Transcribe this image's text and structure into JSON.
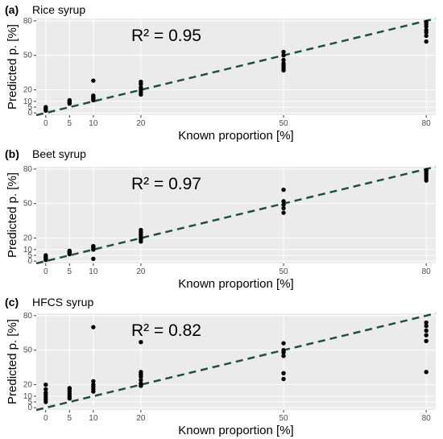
{
  "chart_data": [
    {
      "type": "scatter",
      "panel_label": "(a)",
      "title": "Rice syrup",
      "annotation": "R² = 0.95",
      "xlabel": "Known proportion [%]",
      "ylabel": "Predicted p. [%]",
      "x_ticks": [
        "0",
        "5",
        "10",
        "20",
        "50",
        "80"
      ],
      "y_ticks": [
        "0",
        "5",
        "10",
        "20",
        "50",
        "80"
      ],
      "xlim": [
        -2,
        82
      ],
      "ylim": [
        -2,
        82
      ],
      "grid": true,
      "fit_line": "y = x (dashed)",
      "points": [
        {
          "x": 0,
          "y": 2
        },
        {
          "x": 0,
          "y": 3
        },
        {
          "x": 0,
          "y": 4
        },
        {
          "x": 0,
          "y": 5
        },
        {
          "x": 5,
          "y": 8
        },
        {
          "x": 5,
          "y": 9
        },
        {
          "x": 5,
          "y": 10
        },
        {
          "x": 5,
          "y": 11
        },
        {
          "x": 10,
          "y": 11
        },
        {
          "x": 10,
          "y": 12
        },
        {
          "x": 10,
          "y": 13
        },
        {
          "x": 10,
          "y": 14
        },
        {
          "x": 10,
          "y": 15
        },
        {
          "x": 10,
          "y": 28
        },
        {
          "x": 20,
          "y": 16
        },
        {
          "x": 20,
          "y": 18
        },
        {
          "x": 20,
          "y": 20
        },
        {
          "x": 20,
          "y": 22
        },
        {
          "x": 20,
          "y": 25
        },
        {
          "x": 20,
          "y": 27
        },
        {
          "x": 50,
          "y": 37
        },
        {
          "x": 50,
          "y": 39
        },
        {
          "x": 50,
          "y": 41
        },
        {
          "x": 50,
          "y": 43
        },
        {
          "x": 50,
          "y": 46
        },
        {
          "x": 50,
          "y": 50
        },
        {
          "x": 50,
          "y": 53
        },
        {
          "x": 80,
          "y": 62
        },
        {
          "x": 80,
          "y": 67
        },
        {
          "x": 80,
          "y": 70
        },
        {
          "x": 80,
          "y": 72
        },
        {
          "x": 80,
          "y": 75
        },
        {
          "x": 80,
          "y": 77
        },
        {
          "x": 80,
          "y": 79
        }
      ]
    },
    {
      "type": "scatter",
      "panel_label": "(b)",
      "title": "Beet syrup",
      "annotation": "R² = 0.97",
      "xlabel": "Known proportion [%]",
      "ylabel": "Predicted p. [%]",
      "x_ticks": [
        "0",
        "5",
        "10",
        "20",
        "50",
        "80"
      ],
      "y_ticks": [
        "0",
        "5",
        "10",
        "20",
        "50",
        "80"
      ],
      "xlim": [
        -2,
        82
      ],
      "ylim": [
        -2,
        82
      ],
      "grid": true,
      "fit_line": "y = x (dashed)",
      "points": [
        {
          "x": 0,
          "y": 1
        },
        {
          "x": 0,
          "y": 2
        },
        {
          "x": 0,
          "y": 3
        },
        {
          "x": 0,
          "y": 4
        },
        {
          "x": 0,
          "y": 5
        },
        {
          "x": 5,
          "y": 6
        },
        {
          "x": 5,
          "y": 7
        },
        {
          "x": 5,
          "y": 8
        },
        {
          "x": 5,
          "y": 9
        },
        {
          "x": 10,
          "y": 2
        },
        {
          "x": 10,
          "y": 10
        },
        {
          "x": 10,
          "y": 11
        },
        {
          "x": 10,
          "y": 12
        },
        {
          "x": 10,
          "y": 13
        },
        {
          "x": 20,
          "y": 17
        },
        {
          "x": 20,
          "y": 19
        },
        {
          "x": 20,
          "y": 21
        },
        {
          "x": 20,
          "y": 23
        },
        {
          "x": 20,
          "y": 25
        },
        {
          "x": 20,
          "y": 27
        },
        {
          "x": 50,
          "y": 42
        },
        {
          "x": 50,
          "y": 46
        },
        {
          "x": 50,
          "y": 49
        },
        {
          "x": 50,
          "y": 52
        },
        {
          "x": 50,
          "y": 62
        },
        {
          "x": 80,
          "y": 70
        },
        {
          "x": 80,
          "y": 72
        },
        {
          "x": 80,
          "y": 74
        },
        {
          "x": 80,
          "y": 76
        },
        {
          "x": 80,
          "y": 78
        },
        {
          "x": 80,
          "y": 79
        }
      ]
    },
    {
      "type": "scatter",
      "panel_label": "(c)",
      "title": "HFCS syrup",
      "annotation": "R² = 0.82",
      "xlabel": "Known proportion [%]",
      "ylabel": "Predicted p. [%]",
      "x_ticks": [
        "0",
        "5",
        "10",
        "20",
        "50",
        "80"
      ],
      "y_ticks": [
        "0",
        "5",
        "10",
        "20",
        "50",
        "80"
      ],
      "xlim": [
        -2,
        82
      ],
      "ylim": [
        -2,
        82
      ],
      "grid": true,
      "fit_line": "y = x (dashed)",
      "points": [
        {
          "x": 0,
          "y": 5
        },
        {
          "x": 0,
          "y": 7
        },
        {
          "x": 0,
          "y": 9
        },
        {
          "x": 0,
          "y": 11
        },
        {
          "x": 0,
          "y": 13
        },
        {
          "x": 0,
          "y": 16
        },
        {
          "x": 0,
          "y": 20
        },
        {
          "x": 5,
          "y": 8
        },
        {
          "x": 5,
          "y": 10
        },
        {
          "x": 5,
          "y": 12
        },
        {
          "x": 5,
          "y": 14
        },
        {
          "x": 5,
          "y": 16
        },
        {
          "x": 5,
          "y": 17
        },
        {
          "x": 10,
          "y": 14
        },
        {
          "x": 10,
          "y": 16
        },
        {
          "x": 10,
          "y": 18
        },
        {
          "x": 10,
          "y": 20
        },
        {
          "x": 10,
          "y": 23
        },
        {
          "x": 10,
          "y": 70
        },
        {
          "x": 20,
          "y": 19
        },
        {
          "x": 20,
          "y": 21
        },
        {
          "x": 20,
          "y": 24
        },
        {
          "x": 20,
          "y": 27
        },
        {
          "x": 20,
          "y": 29
        },
        {
          "x": 20,
          "y": 31
        },
        {
          "x": 20,
          "y": 57
        },
        {
          "x": 50,
          "y": 25
        },
        {
          "x": 50,
          "y": 30
        },
        {
          "x": 50,
          "y": 45
        },
        {
          "x": 50,
          "y": 48
        },
        {
          "x": 50,
          "y": 50
        },
        {
          "x": 50,
          "y": 56
        },
        {
          "x": 80,
          "y": 31
        },
        {
          "x": 80,
          "y": 58
        },
        {
          "x": 80,
          "y": 63
        },
        {
          "x": 80,
          "y": 67
        },
        {
          "x": 80,
          "y": 71
        },
        {
          "x": 80,
          "y": 74
        }
      ]
    }
  ],
  "colors": {
    "panel_background": "#ebebeb",
    "grid": "#ffffff",
    "points": "#000000",
    "fit_line": "#1f4e4a"
  }
}
